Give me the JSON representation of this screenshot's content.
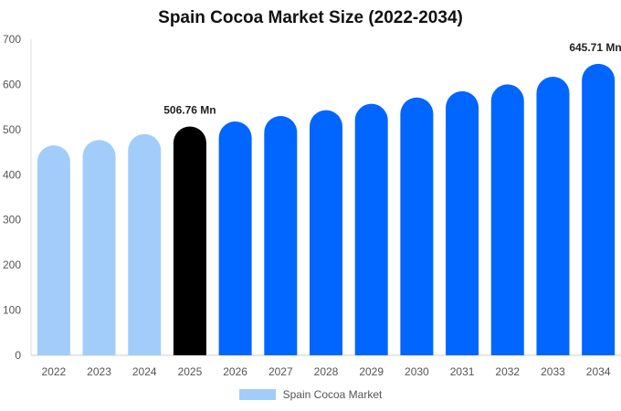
{
  "chart_data": {
    "type": "bar",
    "title": "Spain Cocoa Market Size (2022-2034)",
    "xlabel": "",
    "ylabel": "",
    "ylim": [
      0,
      700
    ],
    "yticks": [
      0,
      100,
      200,
      300,
      400,
      500,
      600,
      700
    ],
    "categories": [
      "2022",
      "2023",
      "2024",
      "2025",
      "2026",
      "2027",
      "2028",
      "2029",
      "2030",
      "2031",
      "2032",
      "2033",
      "2034"
    ],
    "series": [
      {
        "name": "Spain Cocoa Market",
        "values": [
          465,
          477,
          490,
          506.76,
          518,
          530,
          543,
          557,
          571,
          585,
          600,
          617,
          645.71
        ]
      }
    ],
    "data_labels": [
      {
        "category": "2025",
        "text": "506.76 Mn"
      },
      {
        "category": "2034",
        "text": "645.71 Mn"
      }
    ],
    "bar_colors": {
      "historical": "#a2cdfa",
      "current": "#000000",
      "forecast": "#0066ff"
    },
    "legend": {
      "position": "bottom",
      "swatch_color": "#a2cdfa"
    },
    "grid": false
  }
}
